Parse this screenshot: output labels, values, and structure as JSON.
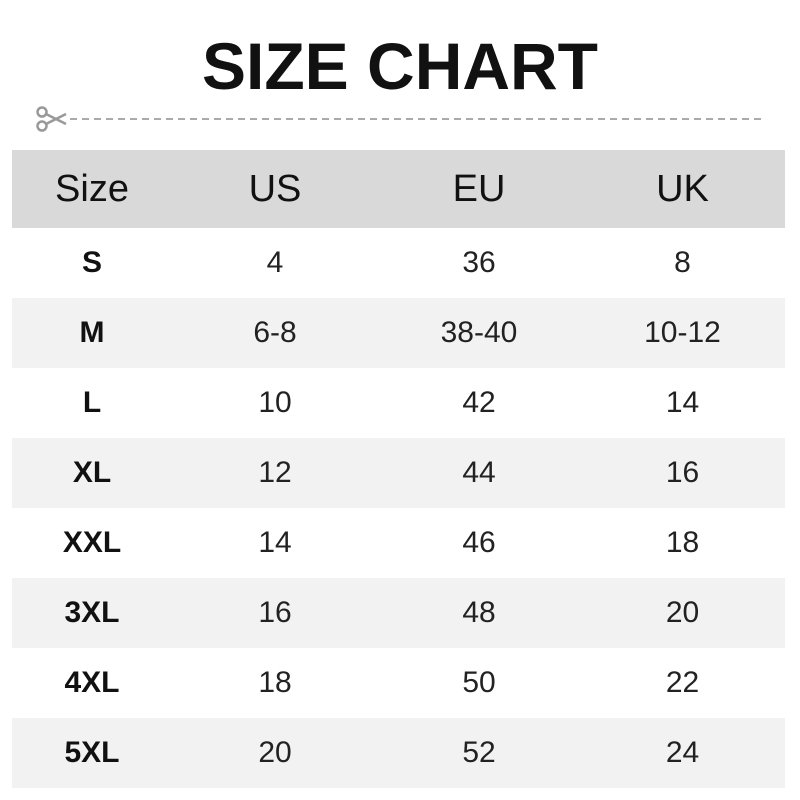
{
  "title": "SIZE CHART",
  "icons": {
    "cut": "scissors-icon"
  },
  "colors": {
    "header_bg": "#d9d9d9",
    "stripe_bg": "#f2f2f2",
    "cutline": "#999999"
  },
  "table": {
    "headers": [
      "Size",
      "US",
      "EU",
      "UK"
    ],
    "rows": [
      [
        "S",
        "4",
        "36",
        "8"
      ],
      [
        "M",
        "6-8",
        "38-40",
        "10-12"
      ],
      [
        "L",
        "10",
        "42",
        "14"
      ],
      [
        "XL",
        "12",
        "44",
        "16"
      ],
      [
        "XXL",
        "14",
        "46",
        "18"
      ],
      [
        "3XL",
        "16",
        "48",
        "20"
      ],
      [
        "4XL",
        "18",
        "50",
        "22"
      ],
      [
        "5XL",
        "20",
        "52",
        "24"
      ]
    ]
  }
}
